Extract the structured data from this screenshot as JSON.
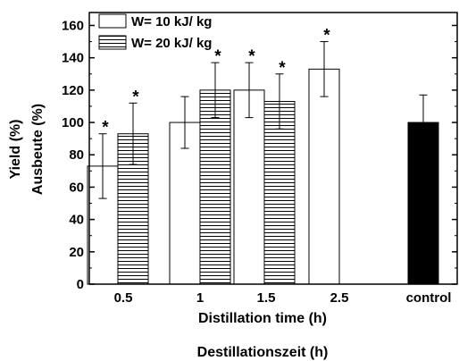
{
  "chart_data": {
    "type": "bar",
    "categories": [
      "0.5",
      "1",
      "1.5",
      "2.5",
      "control"
    ],
    "series": [
      {
        "name": "W= 10 kJ/ kg",
        "values": [
          73,
          100,
          120,
          133,
          null
        ],
        "errors": [
          20,
          16,
          17,
          17,
          null
        ],
        "fill": "white"
      },
      {
        "name": "W= 20 kJ/ kg",
        "values": [
          93,
          120,
          113,
          null,
          null
        ],
        "errors": [
          19,
          17,
          17,
          null,
          null
        ],
        "fill": "horizontal-stripes"
      },
      {
        "name": "",
        "values": [
          null,
          null,
          null,
          null,
          100
        ],
        "errors": [
          null,
          null,
          null,
          null,
          17
        ],
        "fill": "black"
      }
    ],
    "significance": [
      {
        "category": "0.5",
        "series": 0,
        "label": "*"
      },
      {
        "category": "0.5",
        "series": 1,
        "label": "*"
      },
      {
        "category": "1",
        "series": 1,
        "label": "*"
      },
      {
        "category": "1.5",
        "series": 0,
        "label": "*"
      },
      {
        "category": "1.5",
        "series": 1,
        "label": "*"
      },
      {
        "category": "2.5",
        "series": 0,
        "label": "*"
      }
    ],
    "ylabel_en": "Yield (%)",
    "ylabel_de": "Ausbeute (%)",
    "xlabel_en": "Distillation time (h)",
    "xlabel_de": "Destillationszeit (h)",
    "yticks": [
      "0",
      "20",
      "40",
      "60",
      "80",
      "100",
      "120",
      "140",
      "160"
    ],
    "ylim": [
      0,
      168
    ],
    "legend_position": "top-left",
    "grid": false,
    "colors": {
      "axis": "#000000",
      "bar_stroke": "#000000",
      "control_fill": "#000000",
      "background": "#ffffff"
    }
  }
}
